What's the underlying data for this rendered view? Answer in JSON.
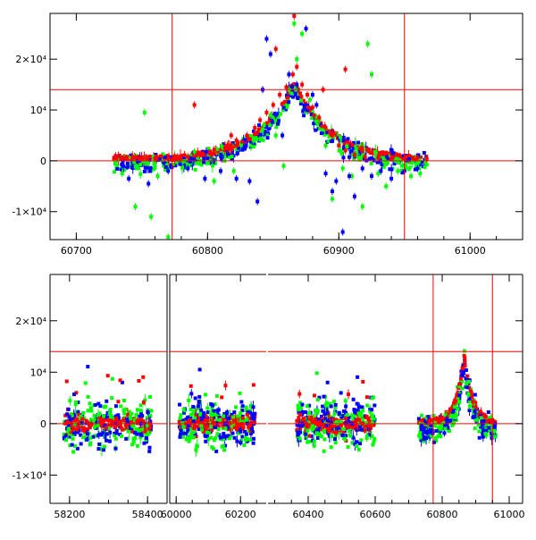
{
  "colors": {
    "red": "#ff0000",
    "green": "#00ff00",
    "blue": "#0000ff",
    "axis": "#000000",
    "refline": "#ff0000"
  },
  "chart_data": [
    {
      "type": "scatter",
      "xlim": [
        60680,
        61040
      ],
      "ylim": [
        -15500,
        29000
      ],
      "xticks": [
        {
          "value": 60700,
          "label": "60700"
        },
        {
          "value": 60800,
          "label": "60800"
        },
        {
          "value": 60900,
          "label": "60900"
        },
        {
          "value": 61000,
          "label": "61000"
        }
      ],
      "yticks": [
        {
          "value": -10000,
          "label": "-1×10⁴"
        },
        {
          "value": 0,
          "label": "0"
        },
        {
          "value": 10000,
          "label": "10⁴"
        },
        {
          "value": 20000,
          "label": "2×10⁴"
        }
      ],
      "hlines": [
        0,
        14000
      ],
      "vlines": [
        60773,
        60950
      ],
      "series": [
        {
          "color": "green",
          "points": [
            [
              60735,
              -2500
            ],
            [
              60745,
              -9000
            ],
            [
              60752,
              9500
            ],
            [
              60757,
              -11000
            ],
            [
              60762,
              -3000
            ],
            [
              60770,
              -15000
            ],
            [
              60790,
              1800
            ],
            [
              60805,
              -4000
            ],
            [
              60820,
              -2000
            ],
            [
              60835,
              4000
            ],
            [
              60843,
              7000
            ],
            [
              60848,
              9000
            ],
            [
              60852,
              5000
            ],
            [
              60858,
              -1000
            ],
            [
              60862,
              14000
            ],
            [
              60866,
              27000
            ],
            [
              60868,
              20000
            ],
            [
              60872,
              25000
            ],
            [
              60878,
              12000
            ],
            [
              60885,
              8000
            ],
            [
              60890,
              3000
            ],
            [
              60895,
              -7500
            ],
            [
              60903,
              -1500
            ],
            [
              60910,
              -3000
            ],
            [
              60918,
              -9000
            ],
            [
              60922,
              23000
            ],
            [
              60925,
              17000
            ],
            [
              60930,
              -2500
            ],
            [
              60936,
              -5000
            ],
            [
              60945,
              -2000
            ],
            [
              60955,
              -3000
            ],
            [
              60962,
              -2500
            ]
          ]
        },
        {
          "color": "blue",
          "points": [
            [
              60740,
              -3500
            ],
            [
              60755,
              -4500
            ],
            [
              60770,
              -2000
            ],
            [
              60785,
              -1500
            ],
            [
              60798,
              -3500
            ],
            [
              60810,
              -2000
            ],
            [
              60822,
              -3500
            ],
            [
              60832,
              -4000
            ],
            [
              60838,
              -8000
            ],
            [
              60842,
              14000
            ],
            [
              60845,
              24000
            ],
            [
              60848,
              21000
            ],
            [
              60852,
              9000
            ],
            [
              60857,
              5000
            ],
            [
              60862,
              17000
            ],
            [
              60868,
              15000
            ],
            [
              60875,
              26000
            ],
            [
              60880,
              13000
            ],
            [
              60883,
              11000
            ],
            [
              60890,
              -2500
            ],
            [
              60895,
              -6000
            ],
            [
              60898,
              -4000
            ],
            [
              60903,
              -14000
            ],
            [
              60908,
              -3000
            ],
            [
              60912,
              -7000
            ],
            [
              60918,
              -1500
            ],
            [
              60925,
              -3000
            ],
            [
              60932,
              -2000
            ],
            [
              60940,
              -3500
            ],
            [
              60950,
              -2000
            ],
            [
              60960,
              -1500
            ]
          ]
        },
        {
          "color": "red",
          "points": [
            [
              60730,
              1000
            ],
            [
              60745,
              700
            ],
            [
              60760,
              500
            ],
            [
              60775,
              900
            ],
            [
              60785,
              800
            ],
            [
              60795,
              1300
            ],
            [
              60805,
              2200
            ],
            [
              60815,
              3000
            ],
            [
              60822,
              4000
            ],
            [
              60830,
              5000
            ],
            [
              60836,
              6500
            ],
            [
              60840,
              8000
            ],
            [
              60845,
              9500
            ],
            [
              60850,
              11000
            ],
            [
              60855,
              13000
            ],
            [
              60860,
              14500
            ],
            [
              60865,
              17000
            ],
            [
              60868,
              18500
            ],
            [
              60872,
              15000
            ],
            [
              60876,
              13000
            ],
            [
              60880,
              10500
            ],
            [
              60885,
              8500
            ],
            [
              60890,
              6500
            ],
            [
              60895,
              5000
            ],
            [
              60900,
              3000
            ],
            [
              60905,
              2000
            ],
            [
              60912,
              1200
            ],
            [
              60920,
              800
            ],
            [
              60930,
              600
            ],
            [
              60940,
              500
            ],
            [
              60950,
              400
            ],
            [
              60960,
              600
            ],
            [
              60967,
              400
            ],
            [
              60790,
              11000
            ],
            [
              60818,
              5000
            ],
            [
              60888,
              14000
            ],
            [
              60866,
              28500
            ],
            [
              60852,
              22000
            ],
            [
              60905,
              18000
            ]
          ]
        }
      ]
    },
    {
      "type": "scatter",
      "segments": [
        {
          "xlim": [
            58150,
            58450
          ],
          "xticks": [
            {
              "value": 58200,
              "label": "58200"
            },
            {
              "value": 58400,
              "label": "58400"
            }
          ]
        },
        {
          "xlim": [
            59980,
            60280
          ],
          "xticks": [
            {
              "value": 60000,
              "label": "60000"
            },
            {
              "value": 60200,
              "label": "60200"
            }
          ]
        },
        {
          "xlim": [
            60280,
            61040
          ],
          "xticks": [
            {
              "value": 60400,
              "label": "60400"
            },
            {
              "value": 60600,
              "label": "60600"
            },
            {
              "value": 60800,
              "label": "60800"
            },
            {
              "value": 61000,
              "label": "61000"
            }
          ]
        }
      ],
      "ylim": [
        -15500,
        29000
      ],
      "yticks": [
        {
          "value": -10000,
          "label": "-1×10⁴"
        },
        {
          "value": 0,
          "label": "0"
        },
        {
          "value": 10000,
          "label": "10⁴"
        },
        {
          "value": 20000,
          "label": "2×10⁴"
        }
      ],
      "hlines": [
        0,
        14000
      ],
      "vlines": [
        60773,
        60950
      ],
      "clusters": [
        {
          "segment": 0,
          "xrange": [
            58185,
            58410
          ]
        },
        {
          "segment": 1,
          "xrange": [
            60010,
            60245
          ]
        },
        {
          "segment": 2,
          "xrange": [
            60365,
            60600
          ]
        },
        {
          "segment": 2,
          "xrange": [
            60730,
            60960
          ]
        }
      ]
    }
  ]
}
